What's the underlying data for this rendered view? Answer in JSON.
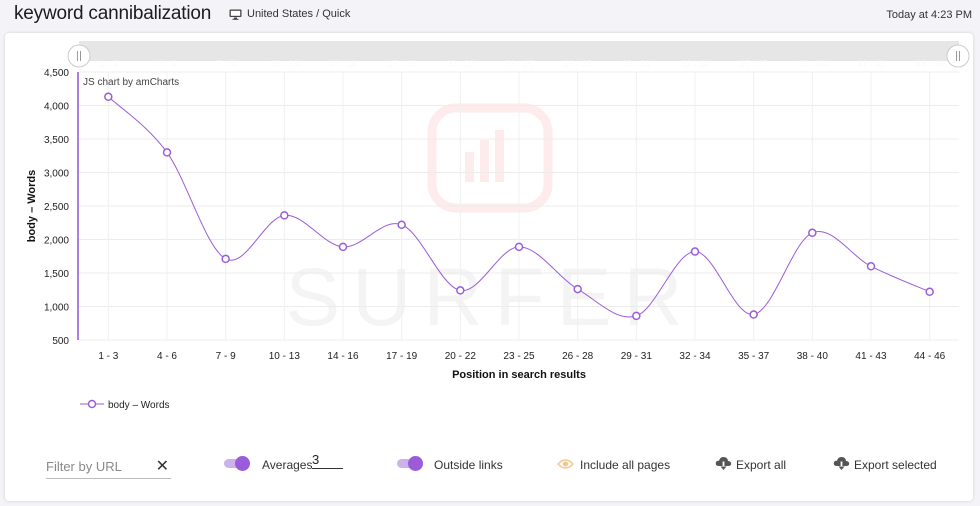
{
  "header": {
    "title": "keyword cannibalization",
    "location": "United States / Quick",
    "timestamp": "Today at 4:23 PM"
  },
  "chart_data": {
    "type": "line",
    "watermark": "SURFER",
    "credit": "JS chart by amCharts",
    "xlabel": "Position in search results",
    "ylabel": "body – Words",
    "categories": [
      "1 - 3",
      "4 - 6",
      "7 - 9",
      "10 - 13",
      "14 - 16",
      "17 - 19",
      "20 - 22",
      "23 - 25",
      "26 - 28",
      "29 - 31",
      "32 - 34",
      "35 - 37",
      "38 - 40",
      "41 - 43",
      "44 - 46"
    ],
    "series": [
      {
        "name": "body – Words",
        "values": [
          4130,
          3300,
          1710,
          2360,
          1890,
          2220,
          1240,
          1890,
          1260,
          860,
          1820,
          880,
          2100,
          1600,
          1220
        ]
      }
    ],
    "yticks": [
      "500",
      "1,000",
      "1,500",
      "2,000",
      "2,500",
      "3,000",
      "3,500",
      "4,000",
      "4,500"
    ],
    "ylim": [
      500,
      4500
    ],
    "grid": true,
    "legend": "bottom-left",
    "color": "#9b5cd9"
  },
  "controls": {
    "filter_placeholder": "Filter by URL",
    "clear_symbol": "✕",
    "averages_label": "Averages",
    "averages_value": "3",
    "outside_links_label": "Outside links",
    "include_all_label": "Include all pages",
    "export_all_label": "Export all",
    "export_selected_label": "Export selected"
  }
}
